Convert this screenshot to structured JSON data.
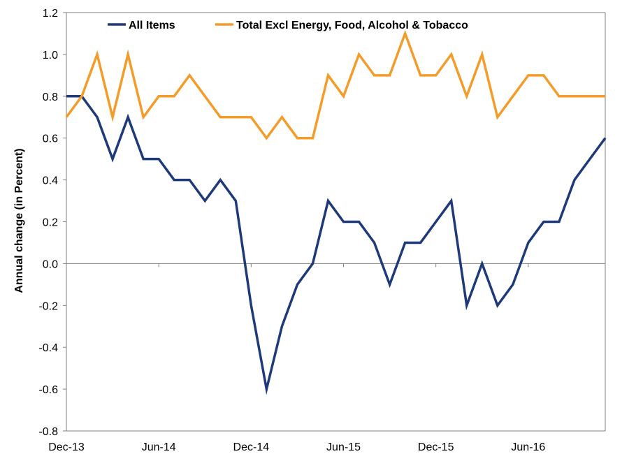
{
  "chart_data": {
    "type": "line",
    "ylabel": "Annual change (in Percent)",
    "xlabel": "",
    "ylim": [
      -0.8,
      1.2
    ],
    "y_ticks": [
      "1.2",
      "1.0",
      "0.8",
      "0.6",
      "0.4",
      "0.2",
      "0.0",
      "-0.2",
      "-0.4",
      "-0.6",
      "-0.8"
    ],
    "x": [
      "Dec-13",
      "Jan-14",
      "Feb-14",
      "Mar-14",
      "Apr-14",
      "May-14",
      "Jun-14",
      "Jul-14",
      "Aug-14",
      "Sep-14",
      "Oct-14",
      "Nov-14",
      "Dec-14",
      "Jan-15",
      "Feb-15",
      "Mar-15",
      "Apr-15",
      "May-15",
      "Jun-15",
      "Jul-15",
      "Aug-15",
      "Sep-15",
      "Oct-15",
      "Nov-15",
      "Dec-15",
      "Jan-16",
      "Feb-16",
      "Mar-16",
      "Apr-16",
      "May-16",
      "Jun-16",
      "Jul-16",
      "Aug-16",
      "Sep-16",
      "Oct-16",
      "Nov-16"
    ],
    "x_tick_labels": [
      "Dec-13",
      "Jun-14",
      "Dec-14",
      "Jun-15",
      "Dec-15",
      "Jun-16"
    ],
    "legend_position": "top",
    "grid": false,
    "series": [
      {
        "name": "All Items",
        "color": "#1f3a7a",
        "values": [
          0.8,
          0.8,
          0.7,
          0.5,
          0.7,
          0.5,
          0.5,
          0.4,
          0.4,
          0.3,
          0.4,
          0.3,
          -0.2,
          -0.6,
          -0.3,
          -0.1,
          0.0,
          0.3,
          0.2,
          0.2,
          0.1,
          -0.1,
          0.1,
          0.1,
          0.2,
          0.3,
          -0.2,
          0.0,
          -0.2,
          -0.1,
          0.1,
          0.2,
          0.2,
          0.4,
          0.5,
          0.6
        ]
      },
      {
        "name": "Total Excl Energy, Food, Alcohol & Tobacco",
        "color": "#f39c2a",
        "values": [
          0.7,
          0.8,
          1.0,
          0.7,
          1.0,
          0.7,
          0.8,
          0.8,
          0.9,
          0.8,
          0.7,
          0.7,
          0.7,
          0.6,
          0.7,
          0.6,
          0.6,
          0.9,
          0.8,
          1.0,
          0.9,
          0.9,
          1.1,
          0.9,
          0.9,
          1.0,
          0.8,
          1.0,
          0.7,
          0.8,
          0.9,
          0.9,
          0.8,
          0.8,
          0.8,
          0.8
        ]
      }
    ]
  }
}
